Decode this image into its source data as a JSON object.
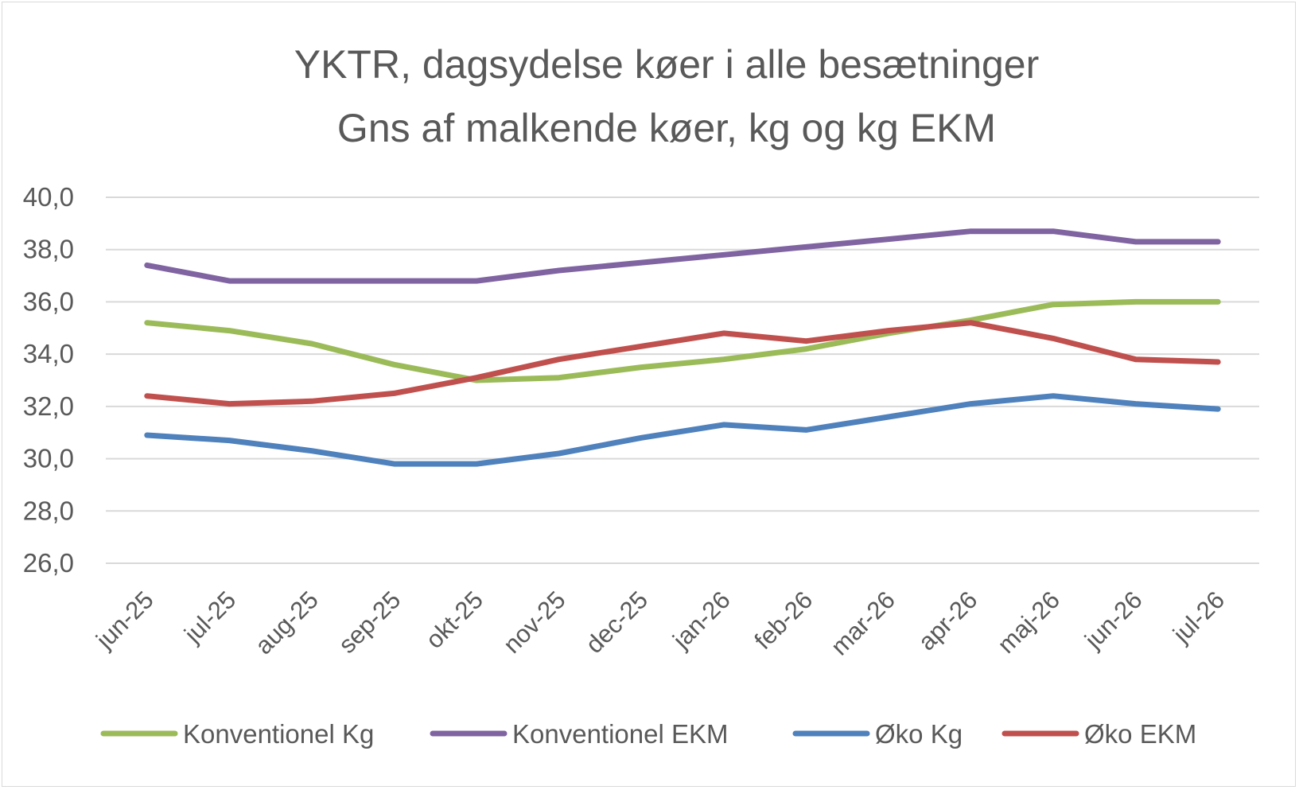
{
  "chart_data": {
    "type": "line",
    "title": "YKTR, dagsydelse køer i alle besætninger",
    "subtitle": "Gns af malkende køer, kg og kg EKM",
    "xlabel": "",
    "ylabel": "",
    "categories": [
      "jun-25",
      "jul-25",
      "aug-25",
      "sep-25",
      "okt-25",
      "nov-25",
      "dec-25",
      "jan-26",
      "feb-26",
      "mar-26",
      "apr-26",
      "maj-26",
      "jun-26",
      "jul-26"
    ],
    "ylim": [
      26,
      40
    ],
    "yticks": [
      "26,0",
      "28,0",
      "30,0",
      "32,0",
      "34,0",
      "36,0",
      "38,0",
      "40,0"
    ],
    "grid": true,
    "legend_position": "bottom",
    "series": [
      {
        "name": "Konventionel Kg",
        "color": "#9bbb59",
        "values": [
          35.2,
          34.9,
          34.4,
          33.6,
          33.0,
          33.1,
          33.5,
          33.8,
          34.2,
          34.8,
          35.3,
          35.9,
          36.0,
          36.0
        ]
      },
      {
        "name": "Konventionel EKM",
        "color": "#8064a2",
        "values": [
          37.4,
          36.8,
          36.8,
          36.8,
          36.8,
          37.2,
          37.5,
          37.8,
          38.1,
          38.4,
          38.7,
          38.7,
          38.3,
          38.3
        ]
      },
      {
        "name": "Øko Kg",
        "color": "#4f81bd",
        "values": [
          30.9,
          30.7,
          30.3,
          29.8,
          29.8,
          30.2,
          30.8,
          31.3,
          31.1,
          31.6,
          32.1,
          32.4,
          32.1,
          31.9
        ]
      },
      {
        "name": "Øko EKM",
        "color": "#c0504d",
        "values": [
          32.4,
          32.1,
          32.2,
          32.5,
          33.1,
          33.8,
          34.3,
          34.8,
          34.5,
          34.9,
          35.2,
          34.6,
          33.8,
          33.7
        ]
      }
    ]
  }
}
